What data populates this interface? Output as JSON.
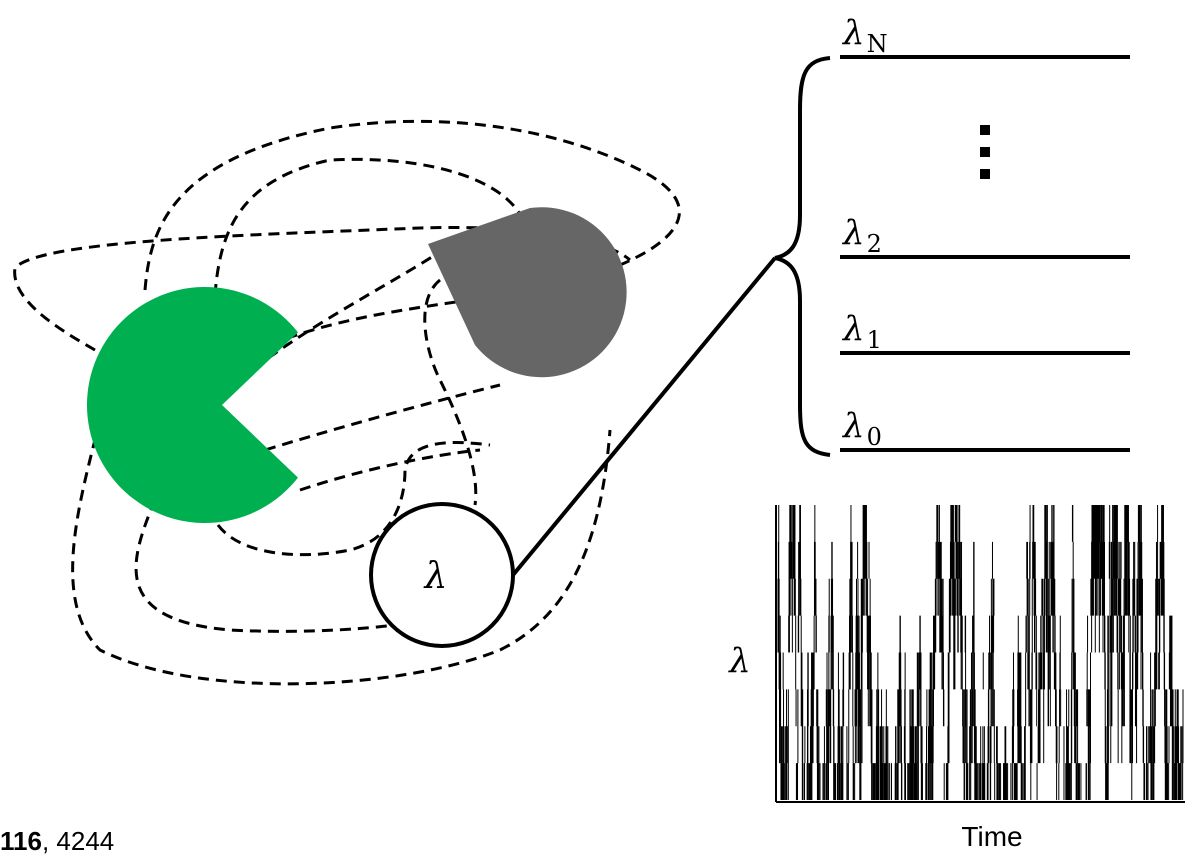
{
  "levels": [
    {
      "main": "λ",
      "sub": "N"
    },
    {
      "main": "λ",
      "sub": "2"
    },
    {
      "main": "λ",
      "sub": "1"
    },
    {
      "main": "λ",
      "sub": "0"
    }
  ],
  "ellipsis": "⋮",
  "circle_label": "λ",
  "trace": {
    "ylabel": "λ",
    "xlabel": "Time",
    "levels_count": 9,
    "samples": 1100,
    "seed": 7
  },
  "caption": {
    "bold": "116",
    "rest": ", 4244"
  },
  "colors": {
    "green_molecule": "#00B050",
    "gray_molecule": "#666666",
    "line": "#000000"
  }
}
